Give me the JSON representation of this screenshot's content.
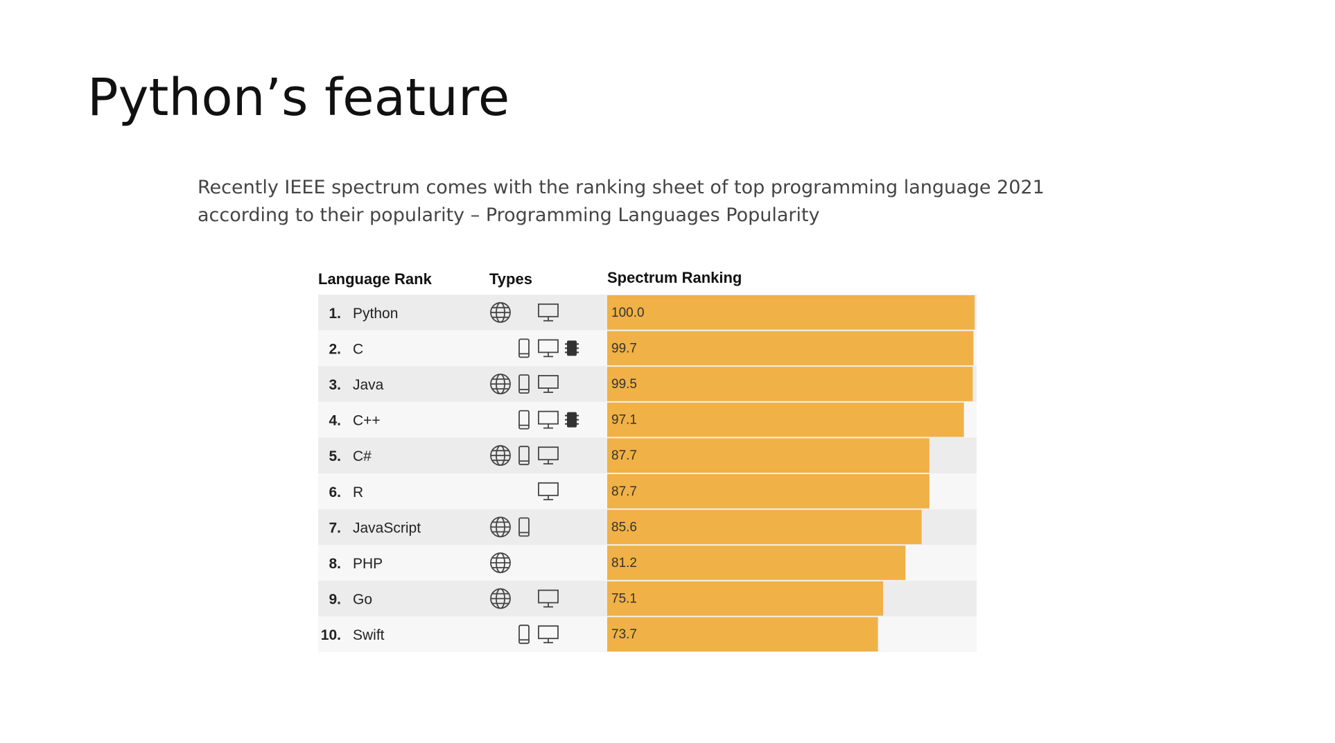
{
  "slide": {
    "title": "Python’s feature",
    "text": [
      "Recently IEEE spectrum comes with the ranking sheet of top programming language 2021",
      "according to their popularity – Programming Languages Popularity"
    ]
  },
  "chart_data": {
    "type": "bar",
    "orientation": "horizontal",
    "headers": [
      "Language Rank",
      "Types",
      "Spectrum Ranking"
    ],
    "ranks": [
      "1.",
      "2.",
      "3.",
      "4.",
      "5.",
      "6.",
      "7.",
      "8.",
      "9.",
      "10."
    ],
    "categories": [
      "Python",
      "C",
      "Java",
      "C++",
      "C#",
      "R",
      "JavaScript",
      "PHP",
      "Go",
      "Swift"
    ],
    "values": [
      100,
      99.7,
      99.5,
      97.1,
      87.7,
      87.7,
      85.6,
      81.2,
      75.1,
      73.7
    ],
    "value_labels": [
      "100.0",
      "99.7",
      "99.5",
      "97.1",
      "87.7",
      "87.7",
      "85.6",
      "81.2",
      "75.1",
      "73.7"
    ],
    "color": "#f0b146",
    "xlim": [
      0,
      100
    ]
  }
}
